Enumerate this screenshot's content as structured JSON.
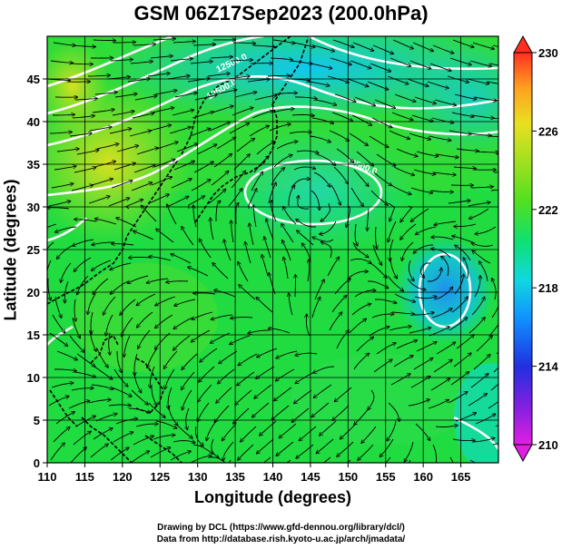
{
  "title": "GSM 06Z17Sep2023 (200.0hPa)",
  "x_axis": {
    "label": "Longitude (degrees)",
    "range": [
      110,
      170
    ],
    "ticks": [
      "110",
      "115",
      "120",
      "125",
      "130",
      "135",
      "140",
      "145",
      "150",
      "155",
      "160",
      "165"
    ]
  },
  "y_axis": {
    "label": "Latitude  (degrees)",
    "range": [
      0,
      50
    ],
    "ticks": [
      "0",
      "5",
      "10",
      "15",
      "20",
      "25",
      "30",
      "35",
      "40",
      "45"
    ]
  },
  "colorbar": {
    "range": [
      210,
      230
    ],
    "ticks": [
      "210",
      "214",
      "218",
      "222",
      "226",
      "230"
    ],
    "colors": [
      "#e020e0",
      "#6020e0",
      "#1030e0",
      "#10a0ff",
      "#10e0c0",
      "#20e040",
      "#80e020",
      "#e0e020",
      "#ffa020",
      "#ff4020"
    ]
  },
  "contour_labels": [
    "12500.0",
    "12500.0",
    "12500.0"
  ],
  "credits": [
    "Drawing by DCL (https://www.gfd-dennou.org/library/dcl/)",
    "Data from http://database.rish.kyoto-u.ac.jp/arch/jmadata/"
  ]
}
